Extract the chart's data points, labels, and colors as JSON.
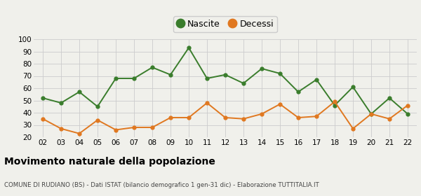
{
  "years": [
    "02",
    "03",
    "04",
    "05",
    "06",
    "07",
    "08",
    "09",
    "10",
    "11",
    "12",
    "13",
    "14",
    "15",
    "16",
    "17",
    "18",
    "19",
    "20",
    "21",
    "22"
  ],
  "nascite": [
    52,
    48,
    57,
    45,
    68,
    68,
    77,
    71,
    93,
    68,
    71,
    64,
    76,
    72,
    57,
    67,
    46,
    61,
    39,
    52,
    39
  ],
  "decessi": [
    35,
    27,
    23,
    34,
    26,
    28,
    28,
    36,
    36,
    48,
    36,
    35,
    39,
    47,
    36,
    37,
    49,
    27,
    39,
    35,
    46
  ],
  "nascite_color": "#3a7d2c",
  "decessi_color": "#e07820",
  "bg_color": "#f0f0eb",
  "grid_color": "#cccccc",
  "title": "Movimento naturale della popolazione",
  "subtitle": "COMUNE DI RUDIANO (BS) - Dati ISTAT (bilancio demografico 1 gen-31 dic) - Elaborazione TUTTITALIA.IT",
  "ylim": [
    20,
    100
  ],
  "yticks": [
    20,
    30,
    40,
    50,
    60,
    70,
    80,
    90,
    100
  ],
  "legend_nascite": "Nascite",
  "legend_decessi": "Decessi"
}
